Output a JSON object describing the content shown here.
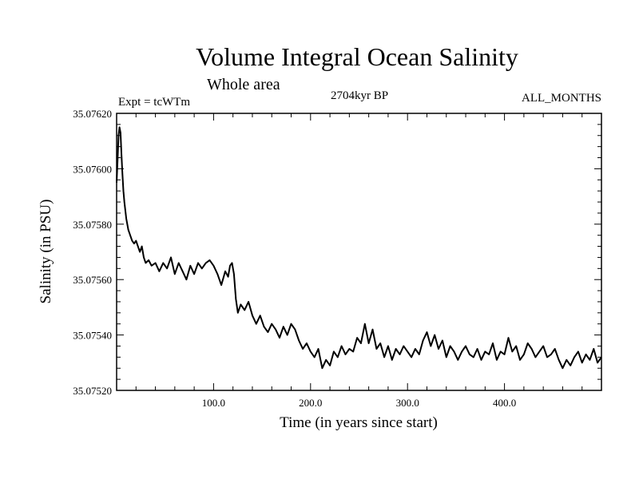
{
  "chart_data": {
    "type": "line",
    "title": "Volume Integral Ocean Salinity",
    "subtitle": "Whole area",
    "header_left": "Expt = tcWTm",
    "header_center": "2704kyr BP",
    "header_right": "ALL_MONTHS",
    "xlabel": "Time (in years since start)",
    "ylabel": "Salinity (in PSU)",
    "xlim": [
      0,
      500
    ],
    "ylim": [
      35.0752,
      35.0762
    ],
    "xticks": [
      100,
      200,
      300,
      400
    ],
    "xtick_labels": [
      "100.0",
      "200.0",
      "300.0",
      "400.0"
    ],
    "yticks": [
      35.0752,
      35.0754,
      35.0756,
      35.0758,
      35.076,
      35.0762
    ],
    "ytick_labels": [
      "35.07520",
      "35.07540",
      "35.07560",
      "35.07580",
      "35.07600",
      "35.07620"
    ],
    "grid": false,
    "series": [
      {
        "name": "Salinity",
        "color": "#000000",
        "x": [
          0,
          1,
          2,
          3,
          4,
          5,
          6,
          7,
          8,
          10,
          12,
          14,
          16,
          18,
          20,
          22,
          24,
          26,
          28,
          30,
          33,
          36,
          40,
          44,
          48,
          52,
          56,
          60,
          64,
          68,
          72,
          76,
          80,
          84,
          88,
          92,
          96,
          100,
          104,
          108,
          112,
          115,
          117,
          119,
          121,
          123,
          125,
          128,
          132,
          136,
          140,
          144,
          148,
          152,
          156,
          160,
          164,
          168,
          172,
          176,
          180,
          184,
          188,
          192,
          196,
          200,
          204,
          208,
          212,
          216,
          220,
          224,
          228,
          232,
          236,
          240,
          244,
          248,
          252,
          256,
          260,
          264,
          268,
          272,
          276,
          280,
          284,
          288,
          292,
          296,
          300,
          304,
          308,
          312,
          316,
          320,
          324,
          328,
          332,
          336,
          340,
          344,
          348,
          352,
          356,
          360,
          364,
          368,
          372,
          376,
          380,
          384,
          388,
          392,
          396,
          400,
          404,
          408,
          412,
          416,
          420,
          424,
          428,
          432,
          436,
          440,
          444,
          448,
          452,
          456,
          460,
          464,
          468,
          472,
          476,
          480,
          484,
          488,
          492,
          496,
          500
        ],
        "values": [
          35.07595,
          35.07603,
          35.07612,
          35.07615,
          35.07613,
          35.07605,
          35.07598,
          35.07592,
          35.07588,
          35.07582,
          35.07578,
          35.07576,
          35.07574,
          35.07573,
          35.07574,
          35.07572,
          35.0757,
          35.07572,
          35.07568,
          35.07566,
          35.07567,
          35.07565,
          35.07566,
          35.07563,
          35.07566,
          35.07564,
          35.07568,
          35.07562,
          35.07566,
          35.07563,
          35.0756,
          35.07565,
          35.07562,
          35.07566,
          35.07564,
          35.07566,
          35.07567,
          35.07565,
          35.07562,
          35.07558,
          35.07563,
          35.07561,
          35.07565,
          35.07566,
          35.07562,
          35.07553,
          35.07548,
          35.07551,
          35.07549,
          35.07552,
          35.07547,
          35.07544,
          35.07547,
          35.07543,
          35.07541,
          35.07544,
          35.07542,
          35.07539,
          35.07543,
          35.0754,
          35.07544,
          35.07542,
          35.07538,
          35.07535,
          35.07537,
          35.07534,
          35.07532,
          35.07535,
          35.07528,
          35.07531,
          35.07529,
          35.07534,
          35.07532,
          35.07536,
          35.07533,
          35.07535,
          35.07534,
          35.07539,
          35.07537,
          35.07544,
          35.07537,
          35.07542,
          35.07535,
          35.07537,
          35.07532,
          35.07536,
          35.07531,
          35.07535,
          35.07533,
          35.07536,
          35.07534,
          35.07532,
          35.07535,
          35.07533,
          35.07538,
          35.07541,
          35.07536,
          35.0754,
          35.07535,
          35.07538,
          35.07532,
          35.07536,
          35.07534,
          35.07531,
          35.07534,
          35.07536,
          35.07533,
          35.07532,
          35.07535,
          35.07531,
          35.07534,
          35.07533,
          35.07537,
          35.07531,
          35.07534,
          35.07533,
          35.07539,
          35.07534,
          35.07536,
          35.07531,
          35.07533,
          35.07537,
          35.07535,
          35.07532,
          35.07534,
          35.07536,
          35.07532,
          35.07533,
          35.07535,
          35.07531,
          35.07528,
          35.07531,
          35.07529,
          35.07532,
          35.07534,
          35.0753,
          35.07533,
          35.07531,
          35.07535,
          35.0753,
          35.07532
        ]
      }
    ]
  }
}
